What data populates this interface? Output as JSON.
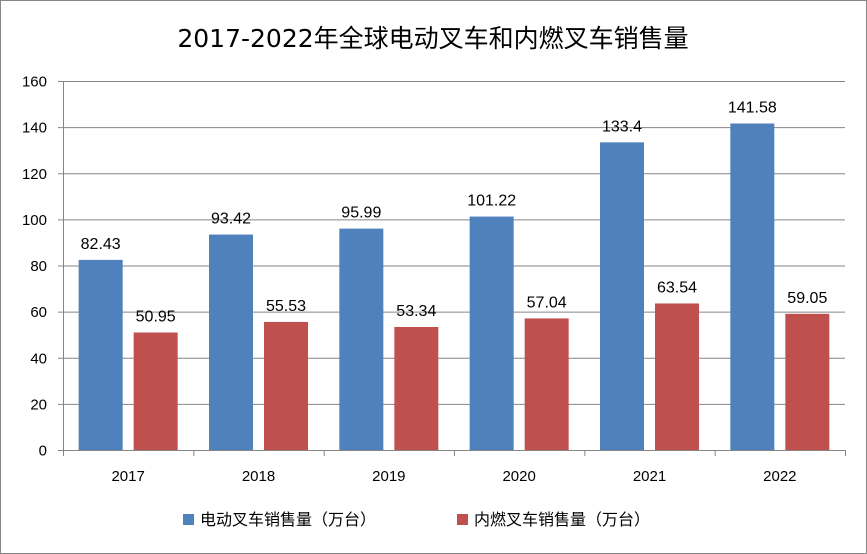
{
  "chart_data": {
    "type": "bar",
    "title": "2017-2022年全球电动叉车和内燃叉车销售量",
    "xlabel": "",
    "ylabel": "",
    "categories": [
      "2017",
      "2018",
      "2019",
      "2020",
      "2021",
      "2022"
    ],
    "series": [
      {
        "name": "电动叉车销售量（万台）",
        "color": "#4F81BD",
        "values": [
          82.43,
          93.42,
          95.99,
          101.22,
          133.4,
          141.58
        ],
        "labels": [
          "82.43",
          "93.42",
          "95.99",
          "101.22",
          "133.4",
          "141.58"
        ]
      },
      {
        "name": "内燃叉车销售量（万台）",
        "color": "#C0504D",
        "values": [
          50.95,
          55.53,
          53.34,
          57.04,
          63.54,
          59.05
        ],
        "labels": [
          "50.95",
          "55.53",
          "53.34",
          "57.04",
          "63.54",
          "59.05"
        ]
      }
    ],
    "ylim": [
      0,
      160
    ],
    "yticks": [
      0,
      20,
      40,
      60,
      80,
      100,
      120,
      140,
      160
    ],
    "ytick_labels": [
      "0",
      "20",
      "40",
      "60",
      "80",
      "100",
      "120",
      "140",
      "160"
    ],
    "grid": true,
    "legend_position": "bottom",
    "gridline_color": "#868686",
    "axis_color": "#868686"
  }
}
